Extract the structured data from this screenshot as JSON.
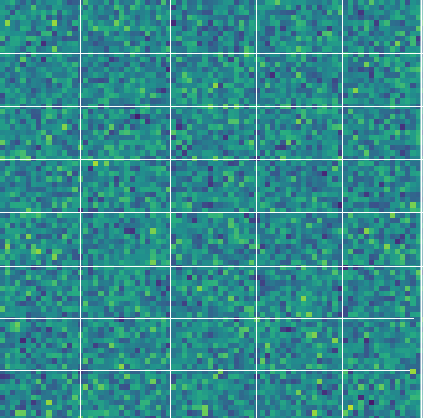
{
  "image": {
    "description_type": "random-noise tiled heatmap mosaic",
    "colormap": "viridis",
    "grid_line_color": "#ffffff",
    "border_color": "#ffffff",
    "tiles": {
      "columns": 5,
      "rows": 8
    }
  }
}
